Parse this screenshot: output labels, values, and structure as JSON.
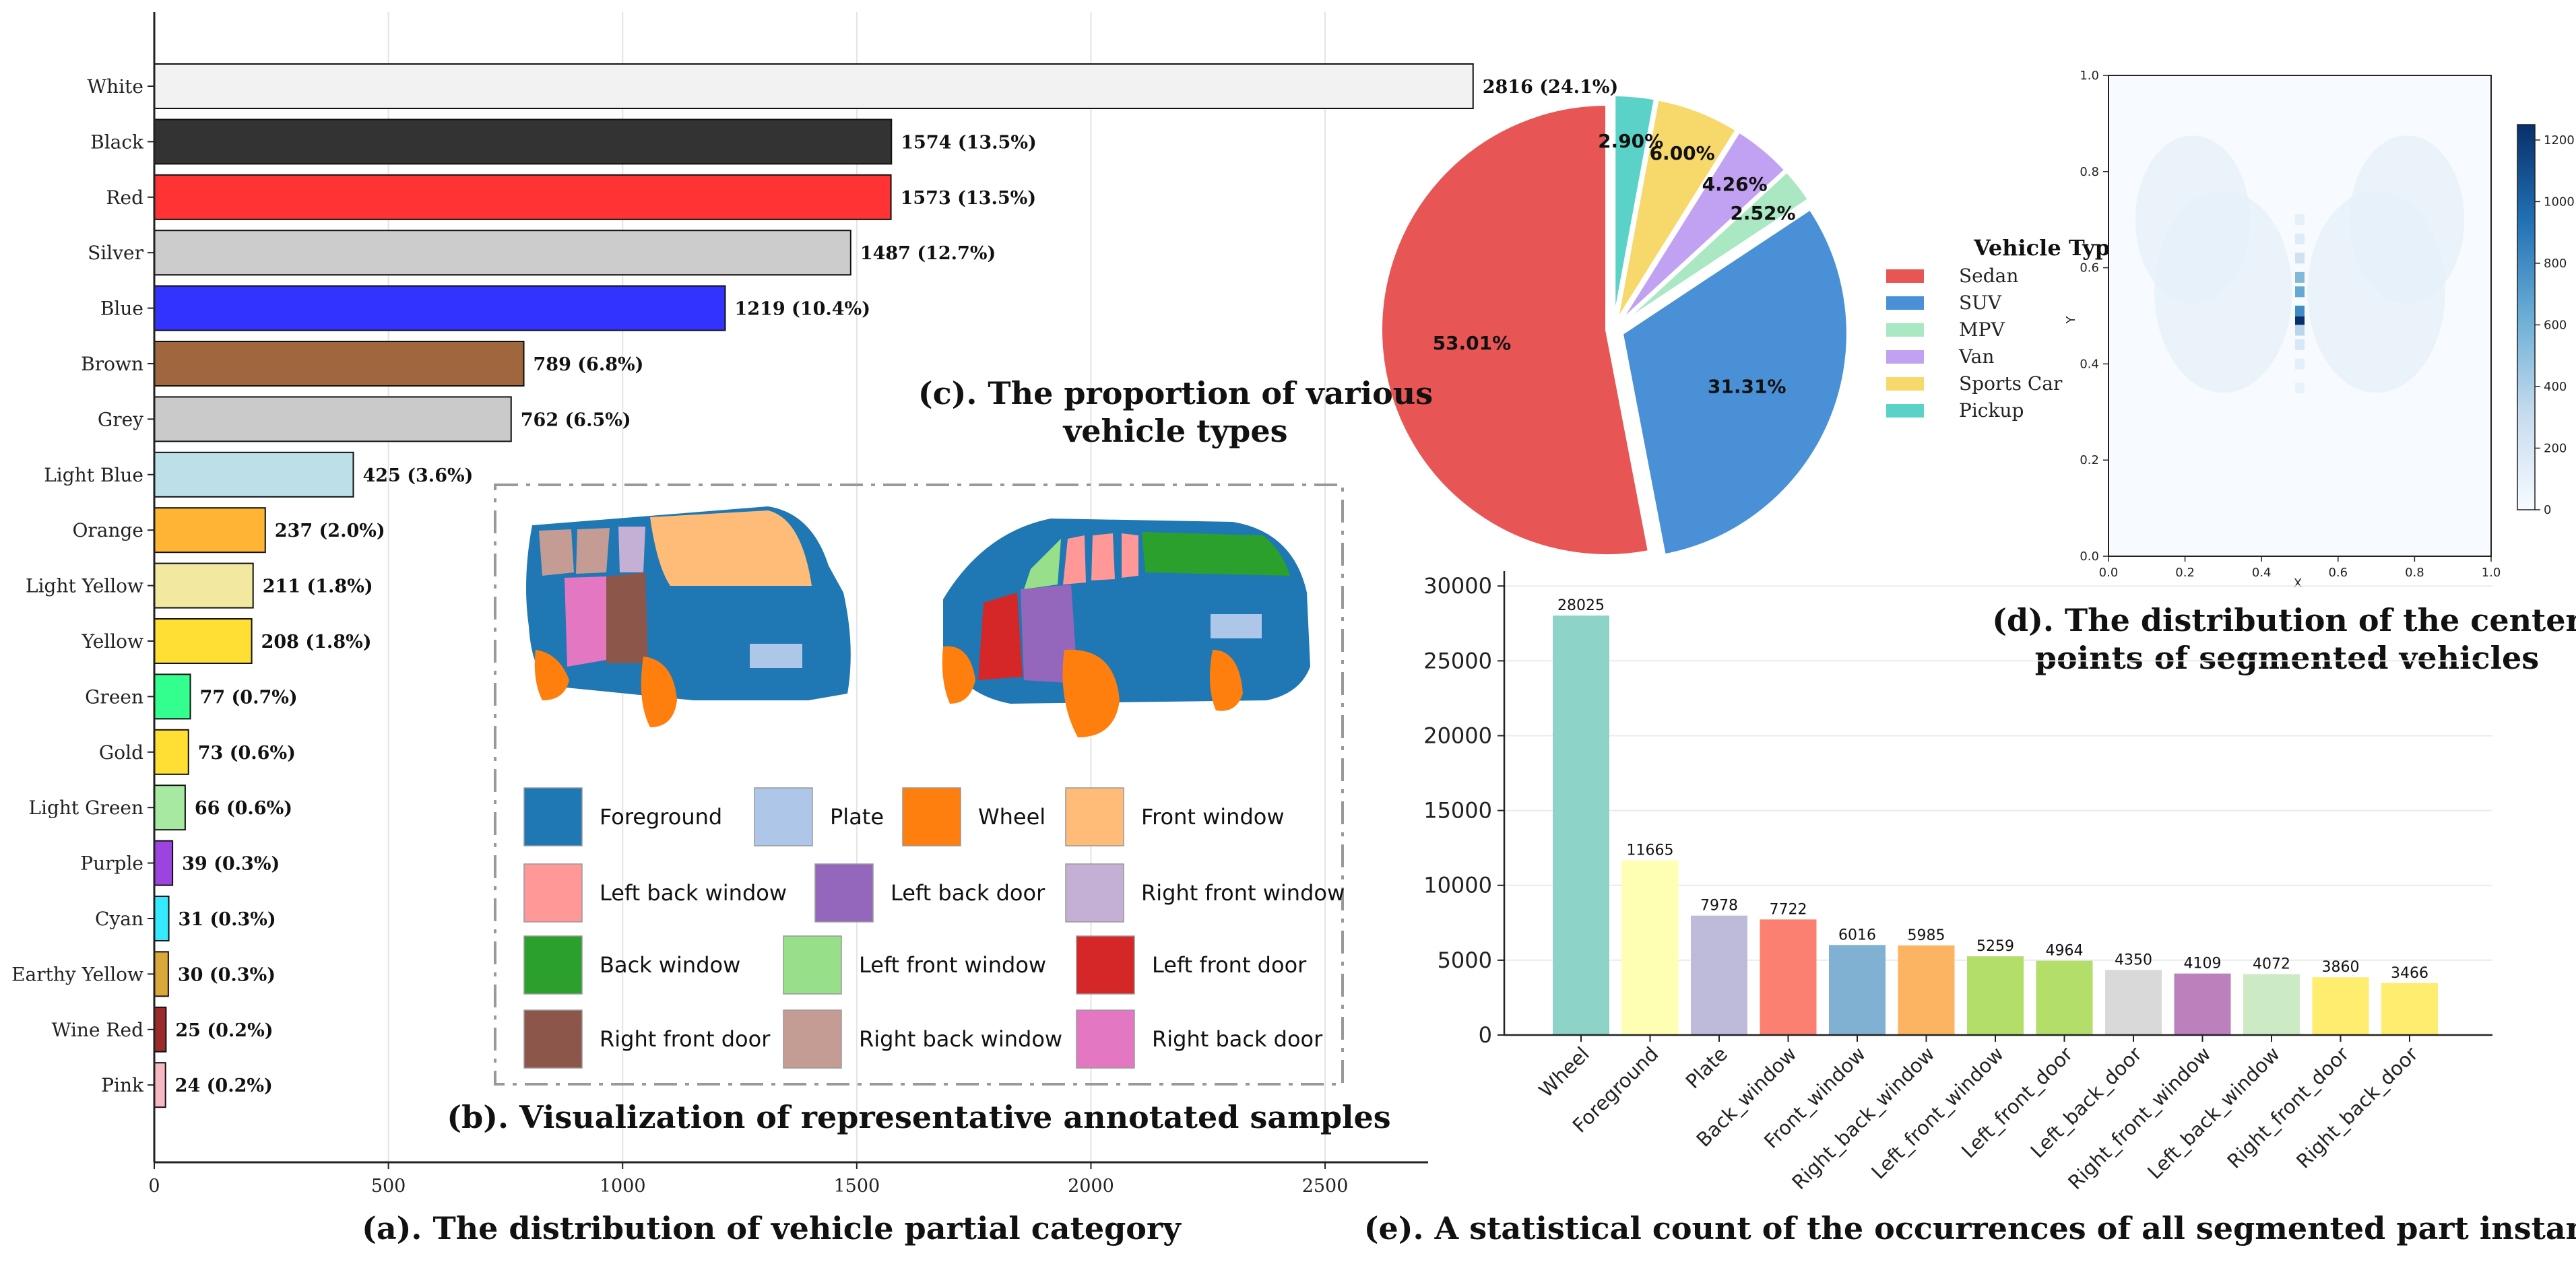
{
  "captions": {
    "a": "(a). The distribution of vehicle partial category",
    "b": "(b). Visualization of representative annotated samples",
    "c_line1": "(c). The proportion of various",
    "c_line2": "vehicle types",
    "d_line1": "(d). The distribution of the center",
    "d_line2": "points of segmented vehicles",
    "e": "(e). A statistical count of the occurrences of all segmented part instances"
  },
  "chart_data": [
    {
      "id": "a",
      "type": "bar",
      "orientation": "horizontal",
      "title": "(a). The distribution of vehicle partial category",
      "categories": [
        "White",
        "Black",
        "Red",
        "Silver",
        "Blue",
        "Brown",
        "Grey",
        "Light Blue",
        "Orange",
        "Light Yellow",
        "Yellow",
        "Green",
        "Gold",
        "Light Green",
        "Purple",
        "Cyan",
        "Earthy Yellow",
        "Wine Red",
        "Pink"
      ],
      "values": [
        2816,
        1574,
        1573,
        1487,
        1219,
        789,
        762,
        425,
        237,
        211,
        208,
        77,
        73,
        66,
        39,
        31,
        30,
        25,
        24
      ],
      "labels": [
        "2816 (24.1%)",
        "1574 (13.5%)",
        "1573 (13.5%)",
        "1487 (12.7%)",
        "1219 (10.4%)",
        "789 (6.8%)",
        "762 (6.5%)",
        "425 (3.6%)",
        "237 (2.0%)",
        "211 (1.8%)",
        "208 (1.8%)",
        "77 (0.7%)",
        "73 (0.6%)",
        "66 (0.6%)",
        "39 (0.3%)",
        "31 (0.3%)",
        "30 (0.3%)",
        "25 (0.2%)",
        "24 (0.2%)"
      ],
      "colors": [
        "#f2f2f2",
        "#333333",
        "#ff3333",
        "#cccccc",
        "#3333ff",
        "#a0673f",
        "#cacaca",
        "#bde0e8",
        "#ffb533",
        "#f3e8a0",
        "#ffdf33",
        "#33ff8f",
        "#ffdf33",
        "#a8e9a1",
        "#9c44e0",
        "#33eaff",
        "#d9a73a",
        "#9c2a2a",
        "#f7b8c3"
      ],
      "xticks": [
        0,
        500,
        1000,
        1500,
        2000,
        2500
      ],
      "xlim": [
        0,
        2720
      ],
      "grid": true
    },
    {
      "id": "c",
      "type": "pie",
      "title": "(c). The proportion of various vehicle types",
      "legend_title": "Vehicle Types",
      "labels": [
        "Sedan",
        "SUV",
        "MPV",
        "Van",
        "Sports Car",
        "Pickup"
      ],
      "values": [
        53.01,
        31.31,
        2.52,
        4.26,
        6.0,
        2.9
      ],
      "value_labels": [
        "53.01%",
        "31.31%",
        "2.52%",
        "4.26%",
        "6.00%",
        "2.90%"
      ],
      "colors": [
        "#e85555",
        "#4990d6",
        "#a9e8c3",
        "#c1a1f2",
        "#f7d86b",
        "#5ad2c8"
      ],
      "exploded": true
    },
    {
      "id": "d",
      "type": "heatmap",
      "title": "(d). The distribution of the center points of segmented vehicles",
      "xlabel": "X",
      "ylabel": "Y",
      "xticks": [
        "0.0",
        "0.2",
        "0.4",
        "0.6",
        "0.8",
        "1.0"
      ],
      "yticks": [
        "0.0",
        "0.2",
        "0.4",
        "0.6",
        "0.8",
        "1.0"
      ],
      "colorbar_ticks": [
        "0",
        "200",
        "400",
        "600",
        "800",
        "1000",
        "1200"
      ],
      "colorbar_range": [
        0,
        1250
      ],
      "hotspots": [
        {
          "x": 0.5,
          "y": 0.49,
          "value": 1250
        },
        {
          "x": 0.5,
          "y": 0.51,
          "value": 800
        },
        {
          "x": 0.5,
          "y": 0.55,
          "value": 650
        },
        {
          "x": 0.5,
          "y": 0.58,
          "value": 550
        },
        {
          "x": 0.5,
          "y": 0.47,
          "value": 350
        },
        {
          "x": 0.5,
          "y": 0.44,
          "value": 200
        },
        {
          "x": 0.5,
          "y": 0.62,
          "value": 250
        },
        {
          "x": 0.5,
          "y": 0.66,
          "value": 150
        },
        {
          "x": 0.5,
          "y": 0.7,
          "value": 110
        },
        {
          "x": 0.5,
          "y": 0.4,
          "value": 120
        },
        {
          "x": 0.5,
          "y": 0.35,
          "value": 90
        }
      ]
    },
    {
      "id": "e",
      "type": "bar",
      "title": "(e). A statistical count of the occurrences of all segmented part instances",
      "categories": [
        "Wheel",
        "Foreground",
        "Plate",
        "Back_window",
        "Front_window",
        "Right_back_window",
        "Left_front_window",
        "Left_front_door",
        "Left_back_door",
        "Right_front_window",
        "Left_back_window",
        "Right_front_door",
        "Right_back_door"
      ],
      "values": [
        28025,
        11665,
        7978,
        7722,
        6016,
        5985,
        5259,
        4964,
        4350,
        4109,
        4072,
        3860,
        3466
      ],
      "colors": [
        "#8dd3c7",
        "#ffffb3",
        "#bebada",
        "#fb8072",
        "#80b1d3",
        "#fdb462",
        "#b3de69",
        "#b3de69",
        "#d9d9d9",
        "#bc80bd",
        "#ccebc5",
        "#ffed6f",
        "#ffed6f"
      ],
      "yticks": [
        0,
        5000,
        10000,
        15000,
        20000,
        25000,
        30000
      ],
      "ylim": [
        0,
        31000
      ],
      "grid": true
    }
  ],
  "panel_b": {
    "legend": [
      {
        "label": "Foreground",
        "color": "#1f77b4"
      },
      {
        "label": "Plate",
        "color": "#aec7e8"
      },
      {
        "label": "Wheel",
        "color": "#ff7f0e"
      },
      {
        "label": "Front window",
        "color": "#ffbb78"
      },
      {
        "label": "Left back window",
        "color": "#ff9896"
      },
      {
        "label": "Left back door",
        "color": "#9467bd"
      },
      {
        "label": "Right front window",
        "color": "#c5b0d5"
      },
      {
        "label": "Back window",
        "color": "#2ca02c"
      },
      {
        "label": "Left front window",
        "color": "#98df8a"
      },
      {
        "label": "Left front door",
        "color": "#d62728"
      },
      {
        "label": "Right front door",
        "color": "#8c564b"
      },
      {
        "label": "Right back window",
        "color": "#c49c94"
      },
      {
        "label": "Right back door",
        "color": "#e377c2"
      }
    ]
  }
}
